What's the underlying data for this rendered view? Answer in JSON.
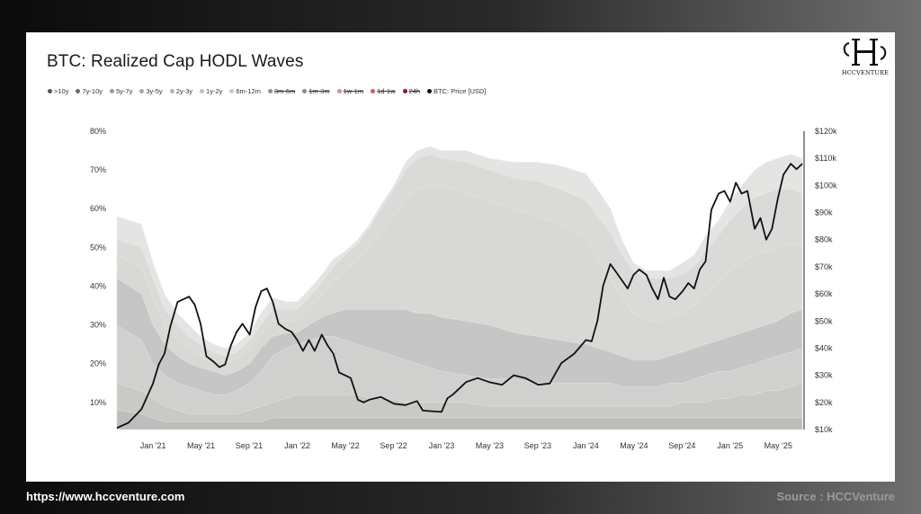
{
  "brand": {
    "logo_text": "HCCVENTURE",
    "website": "https://www.hccventure.com",
    "source": "Source : HCCVenture"
  },
  "chart_data": {
    "type": "area",
    "title": "BTC: Realized Cap HODL Waves",
    "legend_position": "top-left",
    "legend": [
      {
        "label": ">10y",
        "color": "#555555",
        "hidden": false
      },
      {
        "label": "7y-10y",
        "color": "#6a6a6a",
        "hidden": false
      },
      {
        "label": "5y-7y",
        "color": "#9a9a9a",
        "hidden": false
      },
      {
        "label": "3y-5y",
        "color": "#a8a8a8",
        "hidden": false
      },
      {
        "label": "2y-3y",
        "color": "#b4b4b4",
        "hidden": false
      },
      {
        "label": "1y-2y",
        "color": "#c0c0c0",
        "hidden": false
      },
      {
        "label": "6m-12m",
        "color": "#cacaca",
        "hidden": false
      },
      {
        "label": "3m-6m",
        "color": "#909090",
        "hidden": true
      },
      {
        "label": "1m-3m",
        "color": "#8a8a8a",
        "hidden": true
      },
      {
        "label": "1w-1m",
        "color": "#e38a8a",
        "hidden": true
      },
      {
        "label": "1d-1w",
        "color": "#c9605f",
        "hidden": true
      },
      {
        "label": "24h",
        "color": "#8b1a2a",
        "hidden": true
      },
      {
        "label": "BTC: Price [USD]",
        "color": "#111111",
        "hidden": false
      }
    ],
    "x_ticks": [
      "Jan '21",
      "May '21",
      "Sep '21",
      "Jan '22",
      "May '22",
      "Sep '22",
      "Jan '23",
      "May '23",
      "Sep '23",
      "Jan '24",
      "May '24",
      "Sep '24",
      "Jan '25",
      "May '25"
    ],
    "x_range": [
      "2020-10",
      "2025-06"
    ],
    "y_left": {
      "ticks": [
        "10%",
        "20%",
        "30%",
        "40%",
        "50%",
        "60%",
        "70%",
        "80%"
      ],
      "range": [
        3,
        80
      ]
    },
    "y_right": {
      "ticks": [
        "$10k",
        "$20k",
        "$30k",
        "$40k",
        "$50k",
        "$60k",
        "$70k",
        "$80k",
        "$90k",
        "$100k",
        "$110k",
        "$120k"
      ],
      "range": [
        10000,
        120000
      ]
    },
    "grid": false,
    "x": [
      2020.75,
      2020.92,
      2021.0,
      2021.08,
      2021.17,
      2021.25,
      2021.33,
      2021.42,
      2021.5,
      2021.58,
      2021.67,
      2021.75,
      2021.83,
      2021.92,
      2022.0,
      2022.08,
      2022.17,
      2022.25,
      2022.33,
      2022.42,
      2022.5,
      2022.58,
      2022.67,
      2022.75,
      2022.83,
      2022.92,
      2023.0,
      2023.17,
      2023.33,
      2023.5,
      2023.67,
      2023.83,
      2024.0,
      2024.08,
      2024.17,
      2024.25,
      2024.33,
      2024.42,
      2024.5,
      2024.58,
      2024.67,
      2024.75,
      2024.83,
      2024.92,
      2025.0,
      2025.08,
      2025.17,
      2025.25,
      2025.33,
      2025.42,
      2025.5
    ],
    "series": [
      {
        "name": "6m-12m",
        "values": [
          58,
          56,
          46,
          38,
          33,
          30,
          27,
          25,
          24,
          25,
          28,
          33,
          37,
          36,
          36,
          39,
          43,
          47,
          49,
          52,
          56,
          61,
          66,
          72,
          75,
          76,
          75,
          75,
          73,
          72,
          72,
          71,
          69,
          65,
          60,
          52,
          46,
          44,
          44,
          44,
          46,
          48,
          53,
          57,
          62,
          66,
          70,
          72,
          73,
          74,
          73
        ]
      },
      {
        "name": "1y-2y",
        "values": [
          52,
          50,
          42,
          34,
          30,
          27,
          25,
          23,
          22,
          23,
          26,
          30,
          34,
          34,
          34,
          37,
          41,
          45,
          48,
          51,
          55,
          60,
          65,
          70,
          73,
          74,
          73,
          72,
          70,
          68,
          67,
          65,
          62,
          58,
          54,
          48,
          44,
          42,
          42,
          42,
          43,
          45,
          49,
          53,
          57,
          60,
          63,
          64,
          65,
          65,
          64
        ]
      },
      {
        "name": "2y-3y",
        "values": [
          48,
          45,
          37,
          30,
          26,
          24,
          22,
          21,
          20,
          21,
          24,
          28,
          31,
          31,
          31,
          34,
          38,
          41,
          44,
          47,
          50,
          54,
          58,
          62,
          65,
          66,
          66,
          64,
          62,
          60,
          58,
          56,
          52,
          47,
          42,
          37,
          33,
          31,
          31,
          32,
          33,
          35,
          38,
          41,
          44,
          46,
          48,
          49,
          50,
          51,
          50
        ]
      },
      {
        "name": "3y-5y",
        "values": [
          42,
          38,
          30,
          25,
          22,
          20,
          19,
          18,
          17,
          18,
          20,
          24,
          27,
          28,
          28,
          30,
          32,
          33,
          34,
          34,
          34,
          34,
          34,
          34,
          33,
          33,
          32,
          31,
          30,
          28,
          27,
          26,
          25,
          24,
          23,
          22,
          21,
          21,
          21,
          22,
          23,
          24,
          25,
          26,
          27,
          28,
          29,
          30,
          31,
          33,
          34
        ]
      },
      {
        "name": "5y-7y",
        "values": [
          30,
          26,
          20,
          17,
          15,
          14,
          13,
          12,
          12,
          13,
          15,
          18,
          22,
          24,
          25,
          26,
          27,
          27,
          26,
          25,
          24,
          23,
          22,
          21,
          20,
          19,
          18,
          17,
          16,
          16,
          15,
          15,
          15,
          15,
          15,
          14,
          14,
          14,
          14,
          15,
          15,
          16,
          17,
          18,
          18,
          19,
          20,
          21,
          22,
          23,
          24
        ]
      },
      {
        "name": "7y-10y",
        "values": [
          15,
          13,
          11,
          9,
          8,
          7,
          7,
          7,
          7,
          7,
          8,
          9,
          10,
          11,
          12,
          12,
          12,
          12,
          12,
          12,
          11,
          11,
          11,
          10,
          10,
          10,
          10,
          10,
          9,
          9,
          9,
          9,
          9,
          9,
          9,
          9,
          9,
          9,
          9,
          9,
          10,
          10,
          10,
          11,
          11,
          12,
          12,
          13,
          13,
          14,
          15
        ]
      },
      {
        "name": ">10y",
        "values": [
          8,
          7,
          6,
          5,
          5,
          5,
          5,
          5,
          5,
          5,
          5,
          5,
          6,
          6,
          6,
          6,
          6,
          6,
          6,
          6,
          6,
          6,
          6,
          6,
          6,
          6,
          6,
          6,
          6,
          6,
          6,
          6,
          6,
          6,
          6,
          6,
          6,
          6,
          6,
          6,
          6,
          6,
          6,
          6,
          6,
          6,
          6,
          6,
          6,
          6,
          6
        ]
      }
    ],
    "price": {
      "name": "BTC: Price [USD]",
      "x": [
        2020.75,
        2020.83,
        2020.92,
        2021.0,
        2021.04,
        2021.08,
        2021.12,
        2021.17,
        2021.21,
        2021.25,
        2021.29,
        2021.33,
        2021.37,
        2021.42,
        2021.46,
        2021.5,
        2021.54,
        2021.58,
        2021.62,
        2021.67,
        2021.71,
        2021.75,
        2021.79,
        2021.83,
        2021.87,
        2021.92,
        2021.96,
        2022.0,
        2022.04,
        2022.08,
        2022.12,
        2022.17,
        2022.21,
        2022.25,
        2022.29,
        2022.33,
        2022.37,
        2022.42,
        2022.46,
        2022.5,
        2022.58,
        2022.67,
        2022.75,
        2022.83,
        2022.87,
        2022.92,
        2023.0,
        2023.04,
        2023.08,
        2023.17,
        2023.25,
        2023.33,
        2023.42,
        2023.5,
        2023.58,
        2023.67,
        2023.75,
        2023.83,
        2023.92,
        2024.0,
        2024.04,
        2024.08,
        2024.12,
        2024.17,
        2024.21,
        2024.25,
        2024.29,
        2024.33,
        2024.37,
        2024.42,
        2024.46,
        2024.5,
        2024.54,
        2024.58,
        2024.62,
        2024.67,
        2024.71,
        2024.75,
        2024.79,
        2024.83,
        2024.87,
        2024.92,
        2024.96,
        2025.0,
        2025.04,
        2025.08,
        2025.12,
        2025.17,
        2025.21,
        2025.25,
        2025.29,
        2025.33,
        2025.37,
        2025.42,
        2025.46,
        2025.5
      ],
      "values": [
        10600,
        12500,
        17500,
        27000,
        34000,
        38000,
        48000,
        57000,
        58000,
        59000,
        56000,
        49000,
        37000,
        35000,
        33000,
        34000,
        41000,
        46000,
        49000,
        45000,
        55000,
        61000,
        62000,
        57000,
        49000,
        47000,
        46000,
        43000,
        39000,
        43000,
        39000,
        45000,
        41000,
        38000,
        31000,
        30000,
        29000,
        21000,
        20000,
        21000,
        22000,
        19500,
        19000,
        20500,
        17000,
        16800,
        16500,
        21500,
        23000,
        27500,
        29000,
        27500,
        26500,
        30000,
        29000,
        26500,
        27000,
        34500,
        38000,
        43000,
        42500,
        50000,
        63000,
        71000,
        68000,
        65000,
        62000,
        67000,
        69000,
        67000,
        62000,
        58000,
        66000,
        59000,
        58000,
        61000,
        64000,
        62000,
        69000,
        72000,
        91000,
        97000,
        98000,
        94000,
        101000,
        97000,
        98000,
        84000,
        88000,
        80000,
        84000,
        95000,
        104000,
        108000,
        106000,
        108000
      ]
    }
  }
}
